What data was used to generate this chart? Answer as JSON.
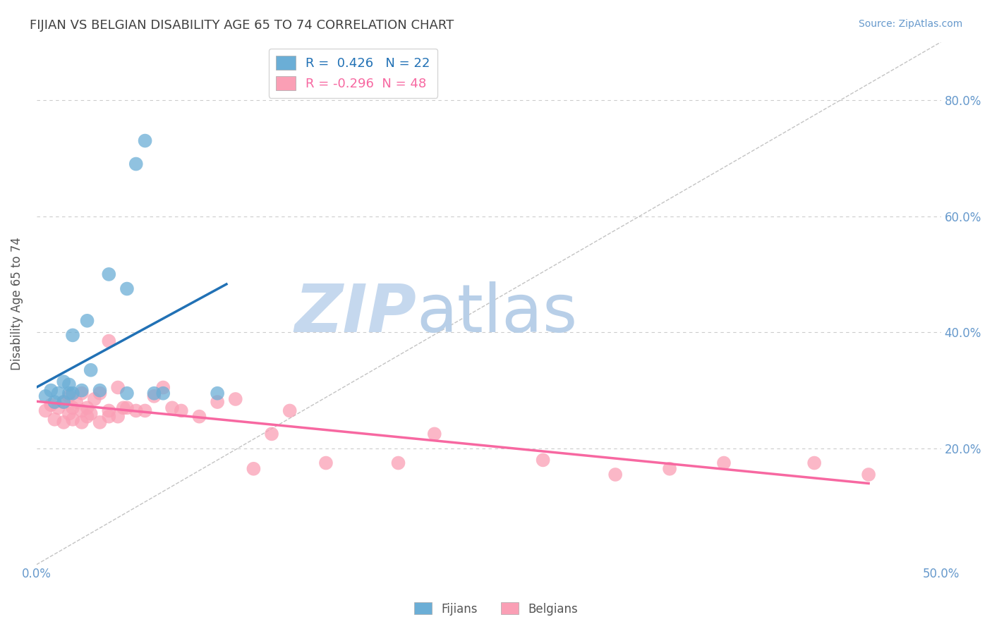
{
  "title": "FIJIAN VS BELGIAN DISABILITY AGE 65 TO 74 CORRELATION CHART",
  "source": "Source: ZipAtlas.com",
  "ylabel": "Disability Age 65 to 74",
  "xlabel": "",
  "xlim": [
    0.0,
    0.5
  ],
  "ylim": [
    0.0,
    0.9
  ],
  "xticks": [
    0.0,
    0.1,
    0.2,
    0.3,
    0.4,
    0.5
  ],
  "xtick_labels": [
    "0.0%",
    "",
    "",
    "",
    "",
    "50.0%"
  ],
  "yticks": [
    0.0,
    0.2,
    0.4,
    0.6,
    0.8
  ],
  "ytick_labels_right": [
    "",
    "20.0%",
    "40.0%",
    "60.0%",
    "80.0%"
  ],
  "fijian_R": 0.426,
  "fijian_N": 22,
  "belgian_R": -0.296,
  "belgian_N": 48,
  "fijian_color": "#6baed6",
  "belgian_color": "#fa9fb5",
  "fijian_line_color": "#2171b5",
  "belgian_line_color": "#f768a1",
  "diagonal_color": "#aaaaaa",
  "background_color": "#ffffff",
  "grid_color": "#cccccc",
  "title_color": "#404040",
  "source_color": "#6699cc",
  "axis_label_color": "#555555",
  "tick_label_color": "#6699cc",
  "fijians_x": [
    0.005,
    0.008,
    0.01,
    0.012,
    0.015,
    0.015,
    0.018,
    0.018,
    0.02,
    0.02,
    0.025,
    0.028,
    0.03,
    0.035,
    0.04,
    0.05,
    0.05,
    0.055,
    0.06,
    0.065,
    0.07,
    0.1
  ],
  "fijians_y": [
    0.29,
    0.3,
    0.28,
    0.295,
    0.28,
    0.315,
    0.295,
    0.31,
    0.295,
    0.395,
    0.3,
    0.42,
    0.335,
    0.3,
    0.5,
    0.295,
    0.475,
    0.69,
    0.73,
    0.295,
    0.295,
    0.295
  ],
  "belgians_x": [
    0.005,
    0.008,
    0.01,
    0.012,
    0.015,
    0.015,
    0.018,
    0.018,
    0.02,
    0.02,
    0.022,
    0.025,
    0.025,
    0.025,
    0.028,
    0.028,
    0.03,
    0.032,
    0.035,
    0.035,
    0.04,
    0.04,
    0.04,
    0.045,
    0.045,
    0.048,
    0.05,
    0.055,
    0.06,
    0.065,
    0.07,
    0.075,
    0.08,
    0.09,
    0.1,
    0.11,
    0.12,
    0.13,
    0.14,
    0.16,
    0.2,
    0.22,
    0.28,
    0.32,
    0.35,
    0.38,
    0.43,
    0.46
  ],
  "belgians_y": [
    0.265,
    0.275,
    0.25,
    0.27,
    0.245,
    0.28,
    0.26,
    0.29,
    0.25,
    0.27,
    0.28,
    0.245,
    0.265,
    0.295,
    0.255,
    0.27,
    0.26,
    0.285,
    0.245,
    0.295,
    0.255,
    0.265,
    0.385,
    0.255,
    0.305,
    0.27,
    0.27,
    0.265,
    0.265,
    0.29,
    0.305,
    0.27,
    0.265,
    0.255,
    0.28,
    0.285,
    0.165,
    0.225,
    0.265,
    0.175,
    0.175,
    0.225,
    0.18,
    0.155,
    0.165,
    0.175,
    0.175,
    0.155
  ],
  "watermark_zip": "ZIP",
  "watermark_atlas": "atlas",
  "watermark_color_zip": "#c5d8ee",
  "watermark_color_atlas": "#b8cfe8",
  "legend_facecolor": "#ffffff",
  "legend_edgecolor": "#cccccc"
}
